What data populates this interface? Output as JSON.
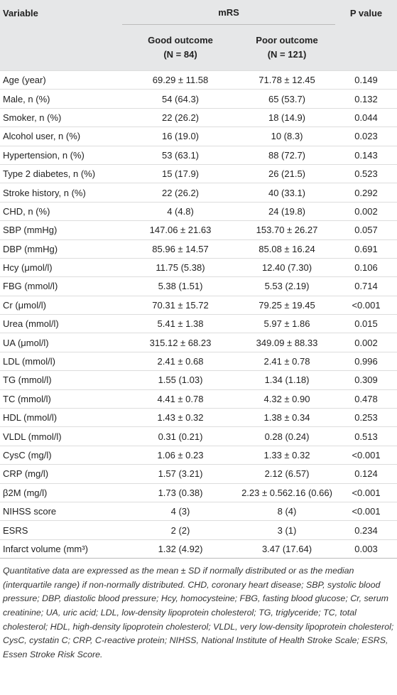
{
  "table": {
    "header": {
      "variable": "Variable",
      "group": "mRS",
      "p_value": "P value",
      "good": "Good outcome",
      "good_n": "(N = 84)",
      "poor": "Poor outcome",
      "poor_n": "(N = 121)"
    },
    "rows": [
      [
        "Age (year)",
        "69.29 ± 11.58",
        "71.78 ± 12.45",
        "0.149"
      ],
      [
        "Male, n (%)",
        "54 (64.3)",
        "65 (53.7)",
        "0.132"
      ],
      [
        "Smoker, n (%)",
        "22 (26.2)",
        "18 (14.9)",
        "0.044"
      ],
      [
        "Alcohol user, n (%)",
        "16 (19.0)",
        "10 (8.3)",
        "0.023"
      ],
      [
        "Hypertension, n (%)",
        "53 (63.1)",
        "88 (72.7)",
        "0.143"
      ],
      [
        "Type 2 diabetes, n (%)",
        "15 (17.9)",
        "26 (21.5)",
        "0.523"
      ],
      [
        "Stroke history, n (%)",
        "22 (26.2)",
        "40 (33.1)",
        "0.292"
      ],
      [
        "CHD, n (%)",
        "4 (4.8)",
        "24 (19.8)",
        "0.002"
      ],
      [
        "SBP (mmHg)",
        "147.06 ± 21.63",
        "153.70 ± 26.27",
        "0.057"
      ],
      [
        "DBP (mmHg)",
        "85.96 ± 14.57",
        "85.08 ± 16.24",
        "0.691"
      ],
      [
        "Hcy (μmol/l)",
        "11.75 (5.38)",
        "12.40 (7.30)",
        "0.106"
      ],
      [
        "FBG (mmol/l)",
        "5.38 (1.51)",
        "5.53 (2.19)",
        "0.714"
      ],
      [
        "Cr (μmol/l)",
        "70.31 ± 15.72",
        "79.25 ± 19.45",
        "<0.001"
      ],
      [
        "Urea (mmol/l)",
        "5.41 ± 1.38",
        "5.97 ± 1.86",
        "0.015"
      ],
      [
        "UA (μmol/l)",
        "315.12 ± 68.23",
        "349.09 ± 88.33",
        "0.002"
      ],
      [
        "LDL (mmol/l)",
        "2.41 ± 0.68",
        "2.41 ± 0.78",
        "0.996"
      ],
      [
        "TG (mmol/l)",
        "1.55 (1.03)",
        "1.34 (1.18)",
        "0.309"
      ],
      [
        "TC (mmol/l)",
        "4.41 ± 0.78",
        "4.32 ± 0.90",
        "0.478"
      ],
      [
        "HDL (mmol/l)",
        "1.43 ± 0.32",
        "1.38 ± 0.34",
        "0.253"
      ],
      [
        "VLDL (mmol/l)",
        "0.31 (0.21)",
        "0.28 (0.24)",
        "0.513"
      ],
      [
        "CysC (mg/l)",
        "1.06 ± 0.23",
        "1.33 ± 0.32",
        "<0.001"
      ],
      [
        "CRP (mg/l)",
        "1.57 (3.21)",
        "2.12 (6.57)",
        "0.124"
      ],
      [
        "β2M (mg/l)",
        "1.73 (0.38)",
        "2.23 ± 0.562.16 (0.66)",
        "<0.001"
      ],
      [
        "NIHSS score",
        "4 (3)",
        "8 (4)",
        "<0.001"
      ],
      [
        "ESRS",
        "2 (2)",
        "3 (1)",
        "0.234"
      ],
      [
        "Infarct volume (mm³)",
        "1.32 (4.92)",
        "3.47 (17.64)",
        "0.003"
      ]
    ]
  },
  "footnote": "Quantitative data are expressed as the mean ± SD if normally distributed or as the median (interquartile range) if non-normally distributed. CHD, coronary heart disease; SBP, systolic blood pressure; DBP, diastolic blood pressure; Hcy, homocysteine; FBG, fasting blood glucose; Cr, serum creatinine; UA, uric acid; LDL, low-density lipoprotein cholesterol; TG, triglyceride; TC, total cholesterol; HDL, high-density lipoprotein cholesterol; VLDL, very low-density lipoprotein cholesterol; CysC, cystatin C; CRP, C-reactive protein; NIHSS, National Institute of Health Stroke Scale; ESRS, Essen Stroke Risk Score."
}
